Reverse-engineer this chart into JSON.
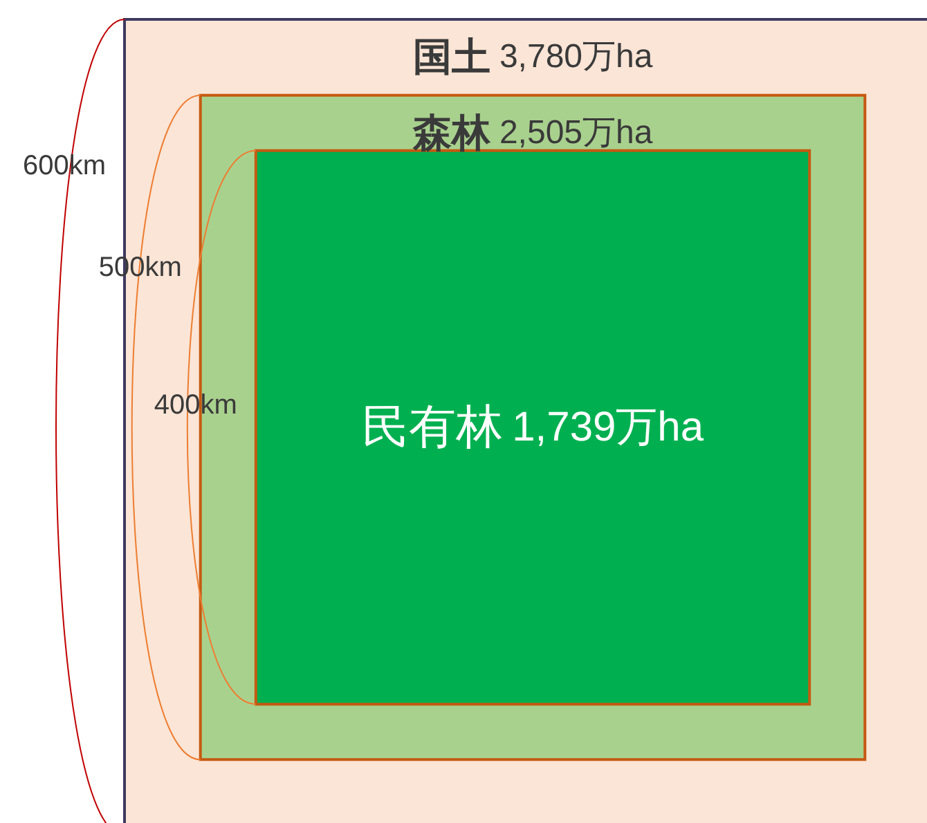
{
  "chart_data": {
    "type": "other",
    "categories": [
      "国土",
      "森林",
      "民有林"
    ],
    "values": [
      3780,
      2505,
      1739
    ],
    "value_labels": [
      "3,780万ha",
      "2,505万ha",
      "1,739万ha"
    ],
    "colors": [
      "#fbe5d6",
      "#a9d18e",
      "#00b050"
    ],
    "annotations": [
      "600km",
      "500km",
      "400km"
    ]
  }
}
